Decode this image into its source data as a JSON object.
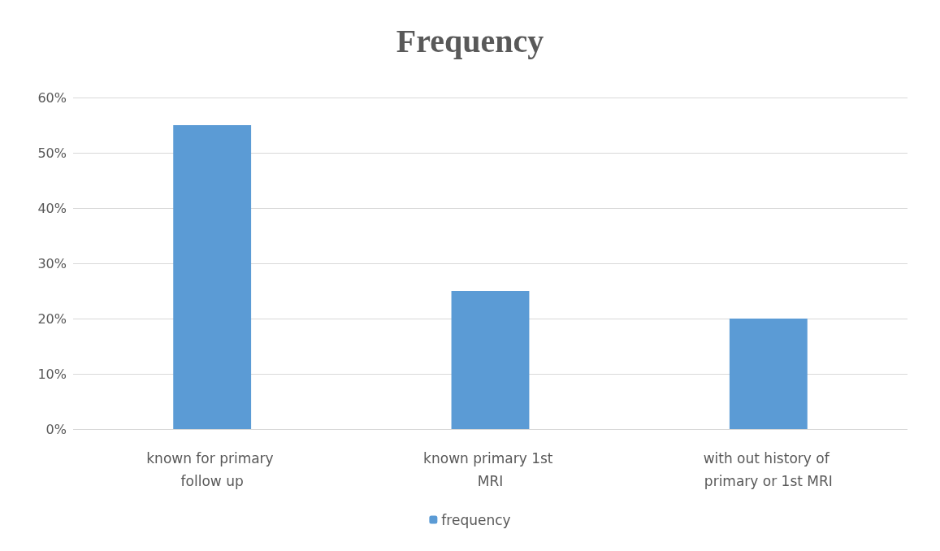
{
  "chart_data": {
    "type": "bar",
    "title": "Frequency",
    "categories": [
      "known for primary follow up",
      "known primary 1st MRI",
      "with out history of primary or 1st MRI"
    ],
    "series": [
      {
        "name": "frequency",
        "color": "#5b9bd5",
        "values": [
          55,
          25,
          20
        ]
      }
    ],
    "ylim": [
      0,
      60
    ],
    "yticks": [
      {
        "value": 0,
        "label": "0%"
      },
      {
        "value": 10,
        "label": "10%"
      },
      {
        "value": 20,
        "label": "20%"
      },
      {
        "value": 30,
        "label": "30%"
      },
      {
        "value": 40,
        "label": "40%"
      },
      {
        "value": 50,
        "label": "50%"
      },
      {
        "value": 60,
        "label": "60%"
      }
    ],
    "grid": "y",
    "legend": "bottom"
  }
}
